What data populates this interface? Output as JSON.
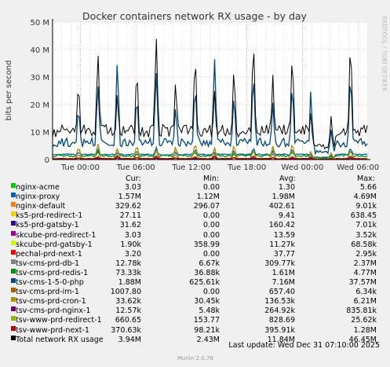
{
  "chart_data": {
    "type": "line",
    "title": "Docker containers network RX usage - by day",
    "ylabel": "bits per second",
    "side_label": "RRDTOOL / TOBI OETIKER",
    "ylim": [
      0,
      50000000
    ],
    "y_ticks": [
      {
        "value": 0,
        "label": "0"
      },
      {
        "value": 10000000,
        "label": "10 M"
      },
      {
        "value": 20000000,
        "label": "20 M"
      },
      {
        "value": 30000000,
        "label": "30 M"
      },
      {
        "value": 40000000,
        "label": "40 M"
      },
      {
        "value": 50000000,
        "label": "50 M"
      }
    ],
    "x_range_hours": [
      -34,
      0
    ],
    "x_ticks": [
      {
        "hour": -31,
        "label": "Tue 00:00"
      },
      {
        "hour": -25,
        "label": "Tue 06:00"
      },
      {
        "hour": -19,
        "label": "Tue 12:00"
      },
      {
        "hour": -13,
        "label": "Tue 18:00"
      },
      {
        "hour": -7,
        "label": "Wed 00:00"
      },
      {
        "hour": -1,
        "label": "Wed 06:00"
      }
    ],
    "grid": true,
    "columns": [
      "Cur:",
      "Min:",
      "Avg:",
      "Max:"
    ],
    "series": [
      {
        "name": "nginx-acme",
        "color": "#00cc00",
        "cur": "3.03",
        "min": "0.00",
        "avg": "1.30",
        "max": "5.66"
      },
      {
        "name": "nginx-proxy",
        "color": "#0066b3",
        "cur": "1.57M",
        "min": "1.12M",
        "avg": "1.98M",
        "max": "4.69M"
      },
      {
        "name": "nginx-default",
        "color": "#ff8000",
        "cur": "329.62",
        "min": "296.07",
        "avg": "402.61",
        "max": "9.01k"
      },
      {
        "name": "ks5-prd-redirect-1",
        "color": "#ffcc00",
        "cur": "27.11",
        "min": "0.00",
        "avg": "9.41",
        "max": "638.45"
      },
      {
        "name": "ks5-prd-gatsby-1",
        "color": "#330099",
        "cur": "31.62",
        "min": "0.00",
        "avg": "160.42",
        "max": "7.01k"
      },
      {
        "name": "skcube-prd-redirect-1",
        "color": "#990099",
        "cur": "3.03",
        "min": "0.00",
        "avg": "13.59",
        "max": "3.52k"
      },
      {
        "name": "skcube-prd-gatsby-1",
        "color": "#ccff00",
        "cur": "1.90k",
        "min": "358.99",
        "avg": "11.27k",
        "max": "68.58k"
      },
      {
        "name": "pechal-prd-next-1",
        "color": "#ff0000",
        "cur": "3.20",
        "min": "0.00",
        "avg": "37.77",
        "max": "2.95k"
      },
      {
        "name": "tsv-cms-prd-db-1",
        "color": "#808080",
        "cur": "12.78k",
        "min": "6.67k",
        "avg": "309.77k",
        "max": "2.37M"
      },
      {
        "name": "tsv-cms-prd-redis-1",
        "color": "#008f00",
        "cur": "73.33k",
        "min": "36.88k",
        "avg": "1.61M",
        "max": "4.77M"
      },
      {
        "name": "tsv-cms-1-5-0-php",
        "color": "#00487d",
        "cur": "1.88M",
        "min": "625.61k",
        "avg": "7.16M",
        "max": "37.57M"
      },
      {
        "name": "tsv-cms-prd-im-1",
        "color": "#b35a00",
        "cur": "1007.80",
        "min": "0.00",
        "avg": "657.40",
        "max": "6.34k"
      },
      {
        "name": "tsv-cms-prd-cron-1",
        "color": "#b38f00",
        "cur": "33.62k",
        "min": "30.45k",
        "avg": "136.53k",
        "max": "6.21M"
      },
      {
        "name": "tsv-cms-prd-nginx-1",
        "color": "#6b006b",
        "cur": "12.57k",
        "min": "5.48k",
        "avg": "264.92k",
        "max": "835.81k"
      },
      {
        "name": "tsv-www-prd-redirect-1",
        "color": "#8fb300",
        "cur": "660.65",
        "min": "153.77",
        "avg": "828.69",
        "max": "25.62k"
      },
      {
        "name": "tsv-www-prd-next-1",
        "color": "#b30000",
        "cur": "370.63k",
        "min": "98.21k",
        "avg": "395.91k",
        "max": "1.28M"
      },
      {
        "name": "Total network RX usage",
        "color": "#000000",
        "cur": "3.94M",
        "min": "2.43M",
        "avg": "11.84M",
        "max": "46.45M"
      }
    ]
  },
  "footer": {
    "last_update": "Last update: Wed Dec 31 07:10:00 2025",
    "munin": "Munin 2.0.76"
  }
}
